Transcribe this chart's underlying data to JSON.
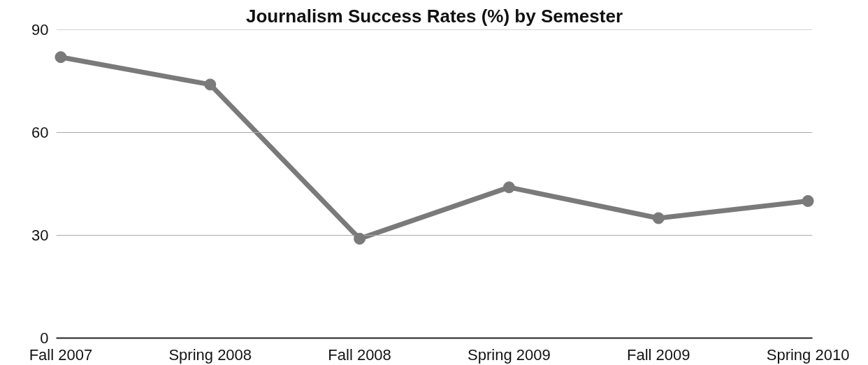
{
  "chart_data": {
    "type": "line",
    "title": "Journalism Success Rates (%) by Semester",
    "categories": [
      "Fall 2007",
      "Spring 2008",
      "Fall 2008",
      "Spring 2009",
      "Fall 2009",
      "Spring 2010"
    ],
    "series": [
      {
        "color": "#7a7a7a",
        "values": [
          82,
          74,
          29,
          44,
          35,
          40
        ]
      }
    ],
    "ylim": [
      0,
      90
    ],
    "yticks": [
      0,
      30,
      60,
      90
    ],
    "grid": "y",
    "marker": "circle",
    "line_style": "solid"
  }
}
